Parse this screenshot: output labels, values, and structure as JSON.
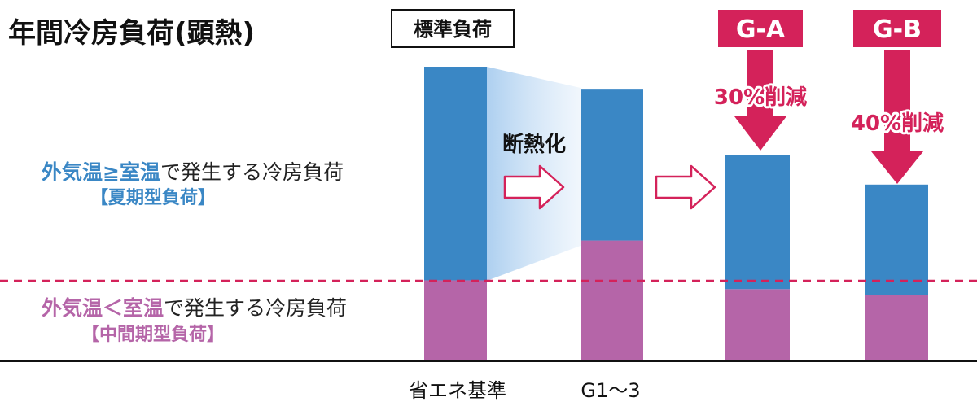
{
  "chart_data": {
    "type": "bar",
    "title": "年間冷房負荷(顕熱)",
    "categories": [
      "標準負荷",
      "G1〜3",
      "G-A",
      "G-B"
    ],
    "x_labels": [
      "省エネ基準",
      "G1〜3",
      "",
      ""
    ],
    "column_headers": [
      "標準負荷",
      "",
      "G-A",
      "G-B"
    ],
    "ylim": [
      0,
      100
    ],
    "series": [
      {
        "name": "中間期型負荷",
        "values": [
          27.5,
          41.0,
          24.5,
          22.5
        ]
      },
      {
        "name": "夏期型負荷",
        "values": [
          72.5,
          51.5,
          45.5,
          37.5
        ]
      }
    ],
    "legend_summer_label": "外気温≧室温で発生する冷房負荷",
    "legend_summer_bracket": "【夏期型負荷】",
    "legend_mid_label": "外気温＜室温で発生する冷房負荷",
    "legend_mid_bracket": "【中間期型負荷】",
    "annotations": {
      "insulation": "断熱化",
      "reduction_ga": "30%削減",
      "reduction_gb": "40%削減"
    },
    "colors": {
      "summer": "#3a87c5",
      "mid": "#b565a8",
      "accent": "#d4225a",
      "summer_text": "#3a87c5",
      "mid_text": "#b565a8",
      "gradient": "#a9cdef"
    }
  }
}
